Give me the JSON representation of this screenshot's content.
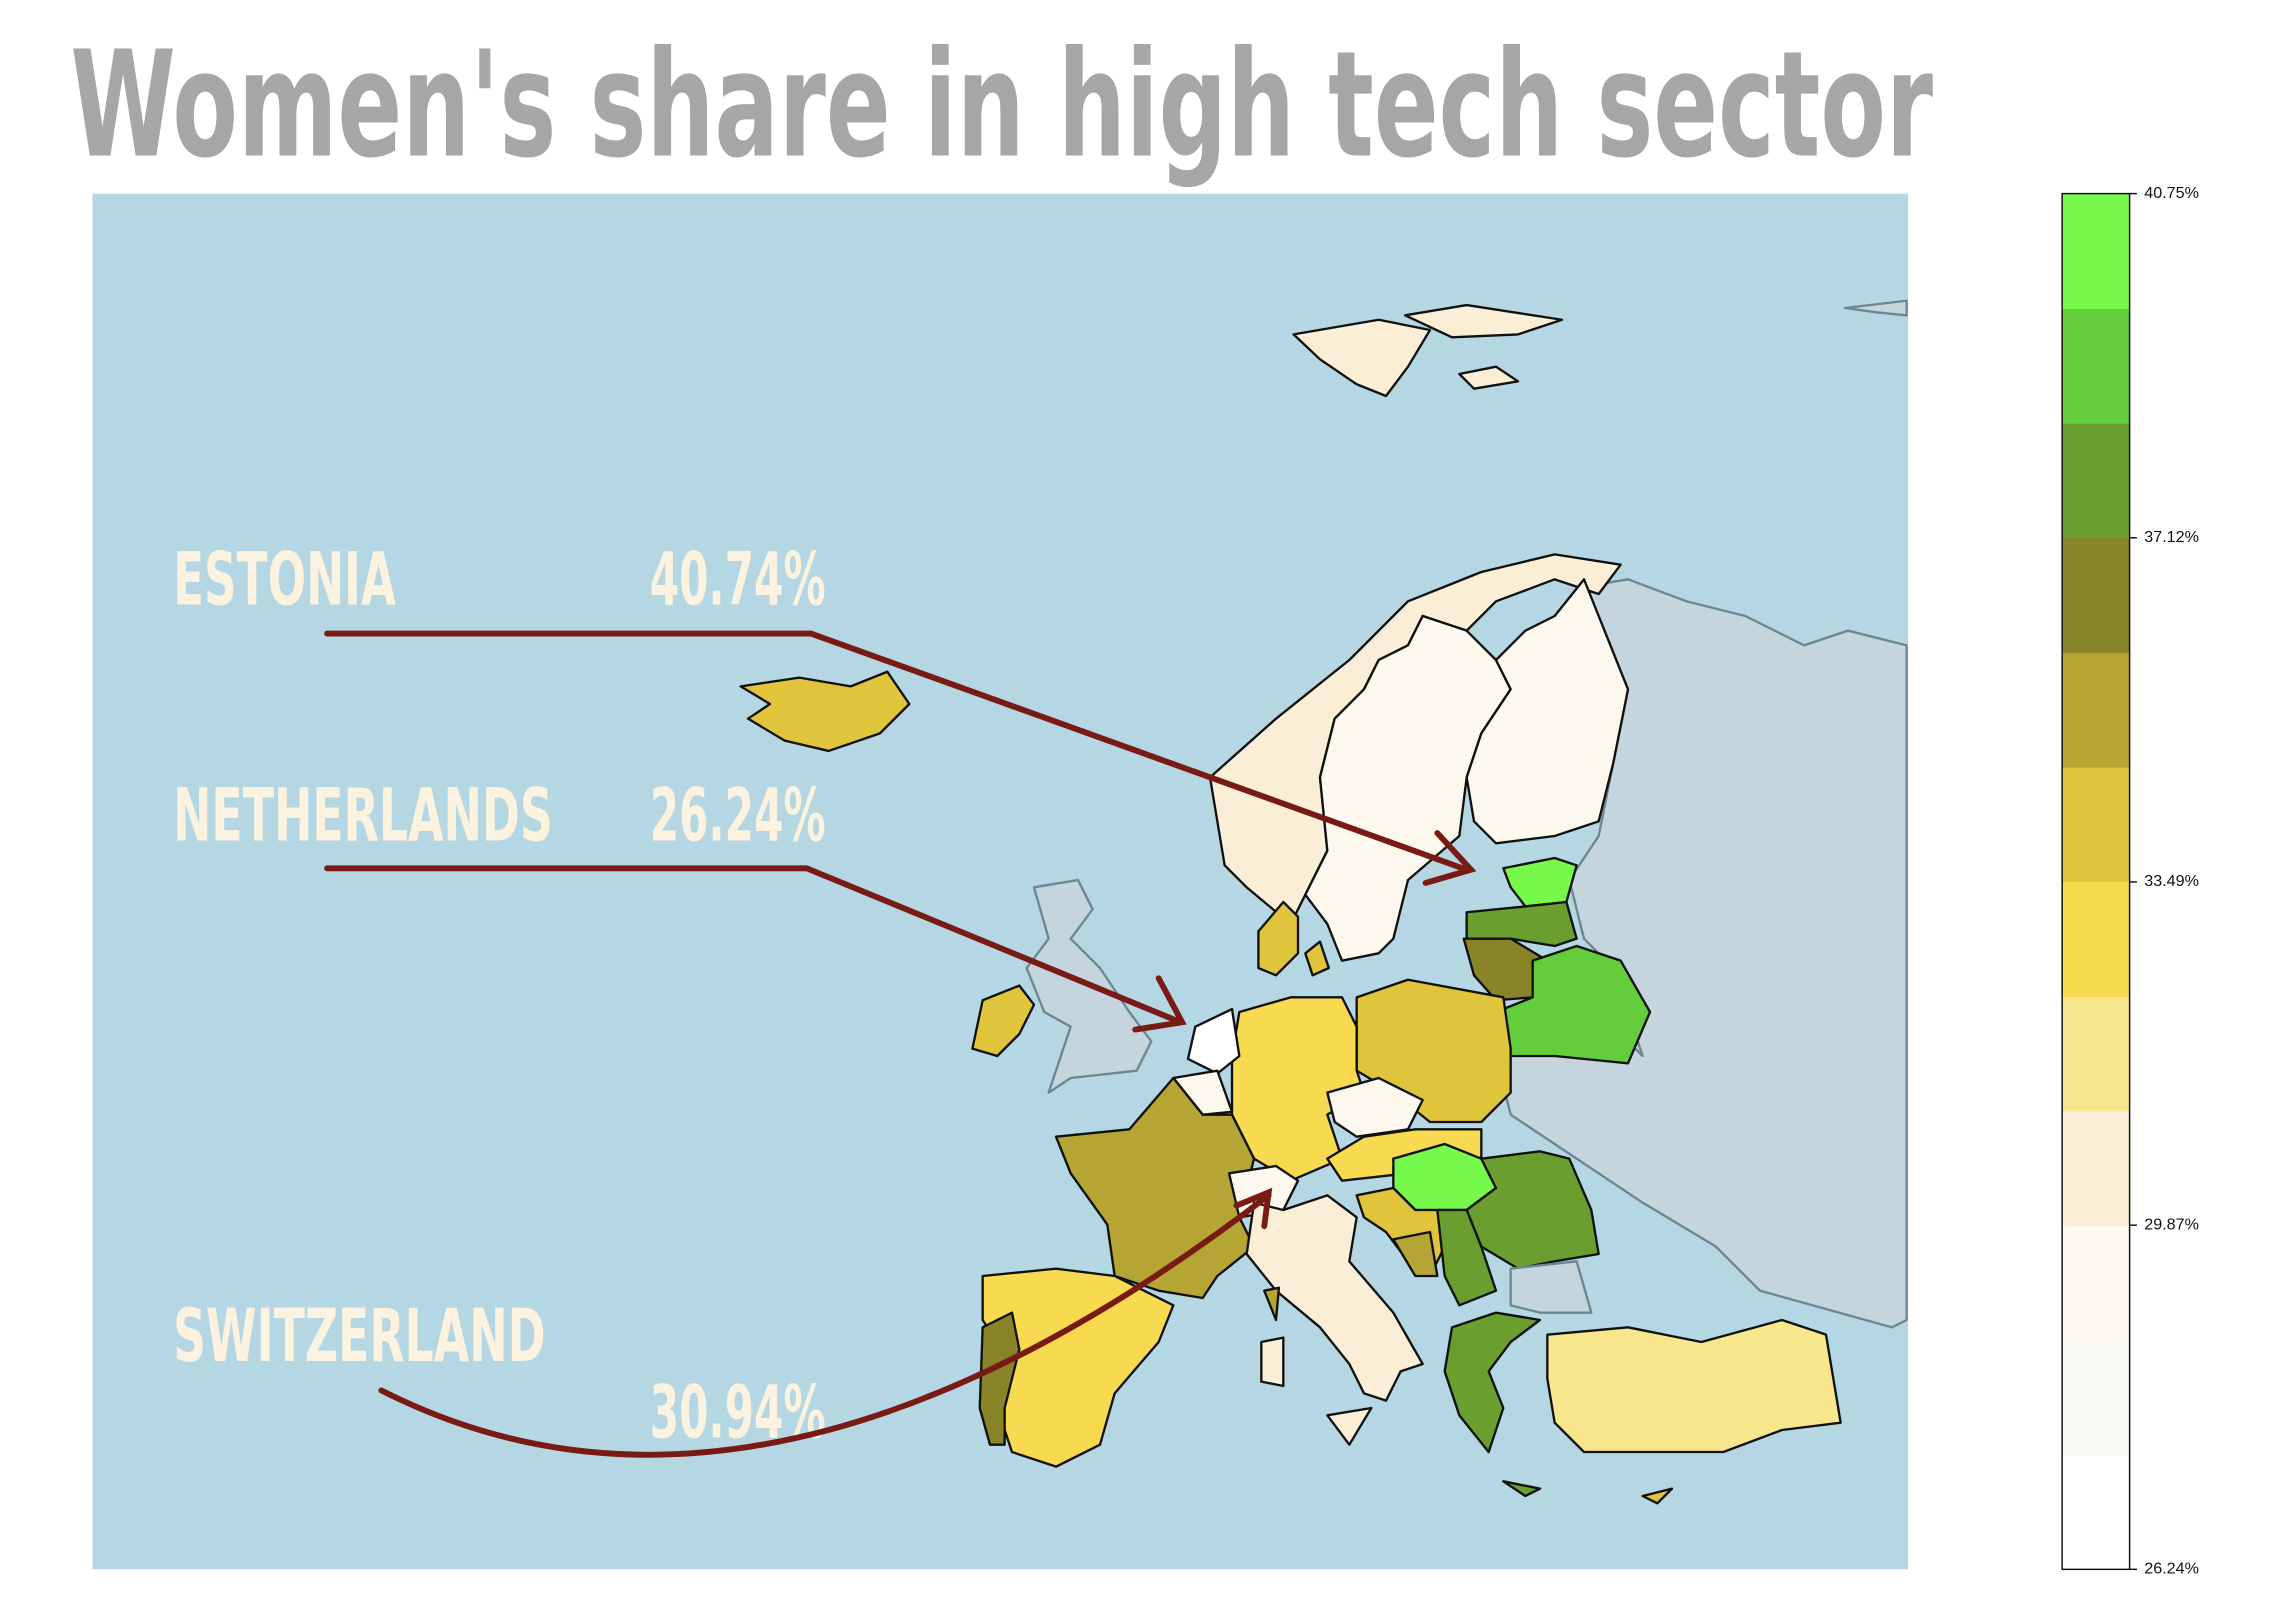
{
  "chart_data": {
    "type": "choropleth",
    "title": "Women's share in high tech sector",
    "annotations": [
      {
        "label": "ESTONIA",
        "value": 40.74,
        "value_label": "40.74%"
      },
      {
        "label": "NETHERLANDS",
        "value": 26.24,
        "value_label": "26.24%"
      },
      {
        "label": "SWITZERLAND",
        "value": 30.94,
        "value_label": "30.94%"
      }
    ],
    "colorbar": {
      "clim": [
        26.24,
        40.75
      ],
      "ticks": [
        {
          "value": 40.75,
          "label": "40.75%"
        },
        {
          "value": 37.12,
          "label": "37.12%"
        },
        {
          "value": 33.49,
          "label": "33.49%"
        },
        {
          "value": 29.87,
          "label": "29.87%"
        },
        {
          "value": 26.24,
          "label": "26.24%"
        }
      ],
      "colors": [
        "#ffffff",
        "#fbf9f4",
        "#fcf8ee",
        "#faeed6",
        "#f8e68c",
        "#f8da50",
        "#e0c43c",
        "#b5a534",
        "#8a8428",
        "#6a9e2e",
        "#64cd3c",
        "#76f94a"
      ]
    }
  }
}
